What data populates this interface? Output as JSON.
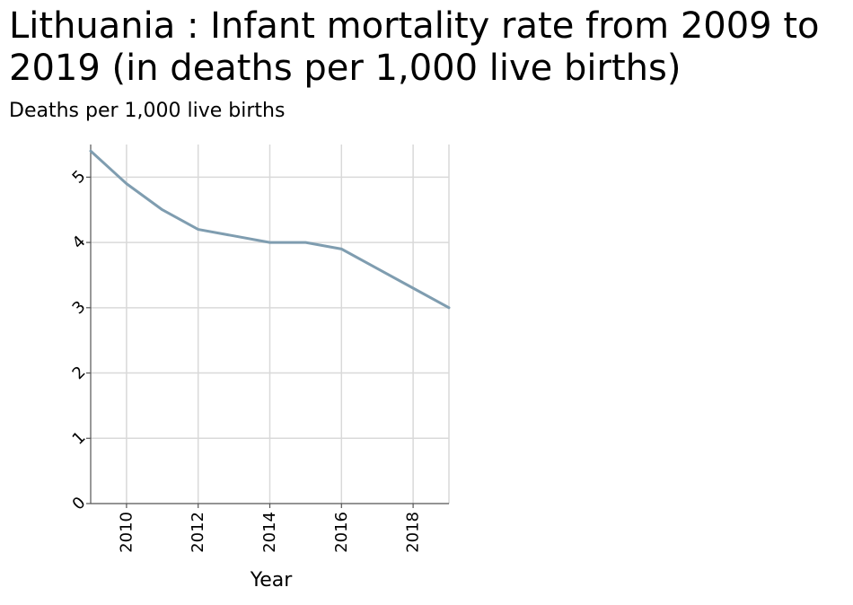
{
  "chart_data": {
    "type": "line",
    "title": "Lithuania : Infant mortality rate from 2009 to 2019 (in deaths per 1,000 live births)",
    "xlabel": "Year",
    "ylabel": "Deaths per 1,000 live births",
    "x": [
      2009,
      2010,
      2011,
      2012,
      2013,
      2014,
      2015,
      2016,
      2017,
      2018,
      2019
    ],
    "series": [
      {
        "values": [
          5.4,
          4.9,
          4.5,
          4.2,
          4.1,
          4.0,
          4.0,
          3.9,
          3.6,
          3.3,
          3.0
        ]
      }
    ],
    "xlim": [
      2009,
      2019
    ],
    "ylim": [
      0,
      5.5
    ],
    "x_ticks": [
      2010,
      2012,
      2014,
      2016,
      2018
    ],
    "y_ticks": [
      0,
      1,
      2,
      3,
      4,
      5
    ],
    "grid": true,
    "line_color": "#7f9db0",
    "grid_color": "#d9d9d9"
  }
}
